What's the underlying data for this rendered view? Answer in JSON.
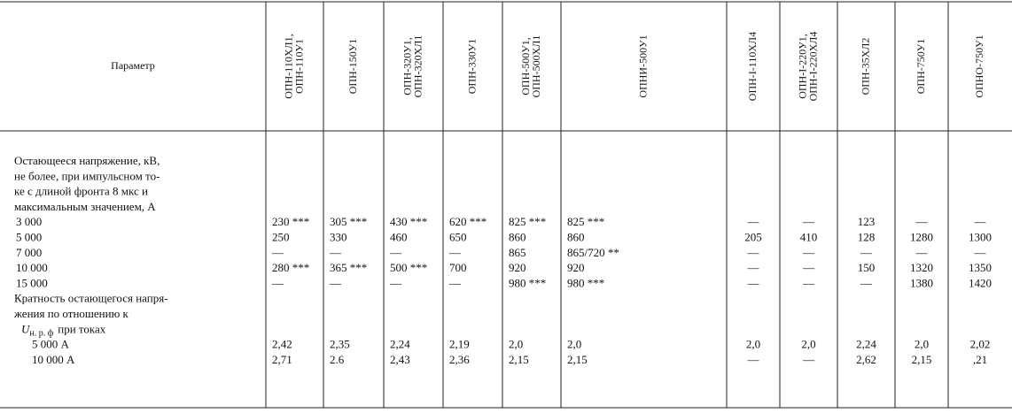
{
  "header": {
    "param": "Параметр",
    "columns": [
      [
        "ОПН-110ХЛ1,",
        "ОПН-110У1"
      ],
      [
        "ОПН-150У1"
      ],
      [
        "ОПН-320У1,",
        "ОПН-320ХЛ1"
      ],
      [
        "ОПН-330У1"
      ],
      [
        "ОПН-500У1,",
        "ОПН-500ХЛ1"
      ],
      [
        "ОПНИ-500У1"
      ],
      [
        "ОПН-I-110ХЛ4"
      ],
      [
        "ОПН-I-220У1,",
        "ОПН-I-220ХЛ4"
      ],
      [
        "ОПН-35ХЛ2"
      ],
      [
        "ОПН-750У1"
      ],
      [
        "ОПНО-750У1"
      ]
    ]
  },
  "rows": [
    {
      "param": [
        "Остающееся напряжение, кВ,",
        "не более, при импульсном то-",
        "ке с длиной фронта 8 мкс и",
        "максимальным значением, А"
      ]
    },
    {
      "param": [
        "3 000"
      ],
      "values": [
        "230 ***",
        "305 ***",
        "430 ***",
        "620 ***",
        "825 ***",
        "825 ***",
        "—",
        "—",
        "123",
        "—",
        "—"
      ]
    },
    {
      "param": [
        "5 000"
      ],
      "values": [
        "250",
        "330",
        "460",
        "650",
        "860",
        "860",
        "205",
        "410",
        "128",
        "1280",
        "1300"
      ]
    },
    {
      "param": [
        "7 000"
      ],
      "values": [
        "—",
        "—",
        "—",
        "—",
        "865",
        "865/720 **",
        "—",
        "—",
        "—",
        "—",
        "—"
      ]
    },
    {
      "param": [
        "10 000"
      ],
      "values": [
        "280 ***",
        "365 ***",
        "500 ***",
        "700",
        "920",
        "920",
        "—",
        "—",
        "150",
        "1320",
        "1350"
      ]
    },
    {
      "param": [
        "15 000"
      ],
      "values": [
        "—",
        "—",
        "—",
        "—",
        "980 ***",
        "980 ***",
        "—",
        "—",
        "—",
        "1380",
        "1420"
      ]
    },
    {
      "param": [
        "Кратность остающегося напря-",
        "жения по отношению к"
      ],
      "formula": {
        "symbol": "U",
        "subscript": "н. р. ф",
        "text": "при токах"
      }
    },
    {
      "param": [
        "5 000 А"
      ],
      "values": [
        "2,42",
        "2,35",
        "2,24",
        "2,19",
        "2,0",
        "2,0",
        "2,0",
        "2,0",
        "2,24",
        "2,0",
        "2,02"
      ]
    },
    {
      "param": [
        "10 000 А"
      ],
      "values": [
        "2,71",
        "2.6",
        "2,43",
        "2,36",
        "2,15",
        "2,15",
        "—",
        "—",
        "2,62",
        "2,15",
        ",21"
      ]
    }
  ]
}
